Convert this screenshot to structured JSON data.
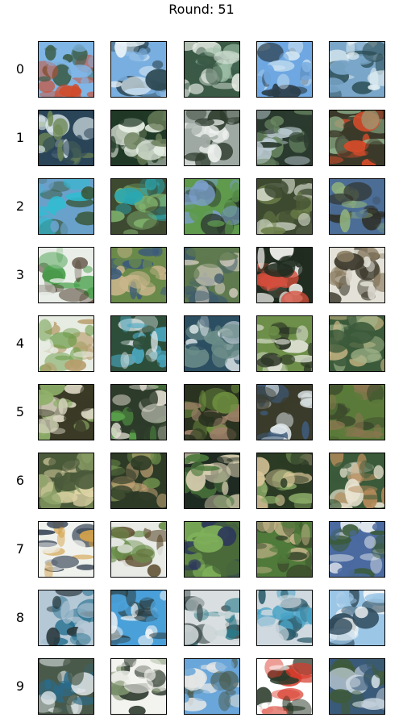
{
  "title": "Round: 51",
  "rows": [
    {
      "label": "0",
      "palettes": [
        [
          "#7fb6e6",
          "#3d5f4d",
          "#d14a2a"
        ],
        [
          "#79aee0",
          "#2f4a55",
          "#e7f1f6"
        ],
        [
          "#3a5a46",
          "#9fbfa8",
          "#e9eee6"
        ],
        [
          "#6ea7e1",
          "#2c3e4a",
          "#cfe4f2"
        ],
        [
          "#7aa6c9",
          "#2b4e56",
          "#e0eef2"
        ]
      ]
    },
    {
      "label": "1",
      "palettes": [
        [
          "#2a4458",
          "#d9e6ea",
          "#708a56"
        ],
        [
          "#203826",
          "#e7efe4",
          "#6b7f5a"
        ],
        [
          "#9fa9a3",
          "#2e3c2e",
          "#eef2ef"
        ],
        [
          "#2a3a2e",
          "#b9c9cf",
          "#6c8a64"
        ],
        [
          "#3b3a2a",
          "#d44b2b",
          "#8fb08a"
        ]
      ]
    },
    {
      "label": "2",
      "palettes": [
        [
          "#6aa1cb",
          "#3b5a3f",
          "#2fbcd2"
        ],
        [
          "#3d4a30",
          "#7fb06d",
          "#2aa7b2"
        ],
        [
          "#5f9a4d",
          "#2d3a2f",
          "#7a9fc9"
        ],
        [
          "#3d4a30",
          "#d9dfd1",
          "#6c7f49"
        ],
        [
          "#4b6d96",
          "#2f3029",
          "#8fb07d"
        ]
      ]
    },
    {
      "label": "3",
      "palettes": [
        [
          "#e9eee8",
          "#4a3a2a",
          "#4aa04d"
        ],
        [
          "#6a8a4a",
          "#3c5b7a",
          "#c9b58c"
        ],
        [
          "#5f7a4f",
          "#cfc9bb",
          "#3e5b6c"
        ],
        [
          "#1f2c1f",
          "#f0f0ec",
          "#d54d3b"
        ],
        [
          "#e4e2d8",
          "#3e3a2e",
          "#8a7c62"
        ]
      ]
    },
    {
      "label": "4",
      "palettes": [
        [
          "#e7ece2",
          "#6a9a45",
          "#b89d6c"
        ],
        [
          "#2d4f3a",
          "#d7e2e3",
          "#4aa8c2"
        ],
        [
          "#2c4f62",
          "#d6e0e3",
          "#6e8f8a"
        ],
        [
          "#6d8f49",
          "#2d3727",
          "#dfe2d6"
        ],
        [
          "#3b5a3a",
          "#a2b58a",
          "#d7c08c"
        ]
      ]
    },
    {
      "label": "5",
      "palettes": [
        [
          "#3a3a26",
          "#8fb06a",
          "#d8d4c0"
        ],
        [
          "#2d3b2a",
          "#e3e0d4",
          "#5aa04a"
        ],
        [
          "#2a3320",
          "#6f9040",
          "#a0826a"
        ],
        [
          "#3a3b2a",
          "#dfe7ea",
          "#3e5a7a"
        ],
        [
          "#5a7a3a",
          "#8a7650",
          "#3c4a2c"
        ]
      ]
    },
    {
      "label": "6",
      "palettes": [
        [
          "#4a5a3a",
          "#e3d7a9",
          "#8fa36a"
        ],
        [
          "#2d3a26",
          "#c9a87a",
          "#6b8a4a"
        ],
        [
          "#1f2b22",
          "#d8cfb1",
          "#4c7a3d"
        ],
        [
          "#2b3b24",
          "#8fb06a",
          "#d9c69a"
        ],
        [
          "#3a5a3a",
          "#e8e2cf",
          "#b58a5a"
        ]
      ]
    },
    {
      "label": "7",
      "palettes": [
        [
          "#f0f2ee",
          "#3d4a5a",
          "#d4a24a"
        ],
        [
          "#e8eae6",
          "#5a4a2a",
          "#6a8f4a"
        ],
        [
          "#4a6a3a",
          "#7fb05a",
          "#2e3a5a"
        ],
        [
          "#4f7a3a",
          "#c7b58a",
          "#3c4a2c"
        ],
        [
          "#4a6aa0",
          "#e8ecef",
          "#3a5a3a"
        ]
      ]
    },
    {
      "label": "8",
      "palettes": [
        [
          "#b5c8d6",
          "#2b3a3f",
          "#1e6c8c"
        ],
        [
          "#4aa0d9",
          "#f0f4f6",
          "#2b3a3a"
        ],
        [
          "#d9dfe0",
          "#3a4a4a",
          "#2a7a8a"
        ],
        [
          "#cfd9df",
          "#2b5a6a",
          "#47a2c6"
        ],
        [
          "#9cc6e6",
          "#f3f5f6",
          "#2f4a5a"
        ]
      ]
    },
    {
      "label": "9",
      "palettes": [
        [
          "#4a5a4a",
          "#e5ebee",
          "#2b6b8a"
        ],
        [
          "#f3f3ef",
          "#2e3a2e",
          "#7a8f6a"
        ],
        [
          "#6aa6d9",
          "#e6e8e6",
          "#4a5a4a"
        ],
        [
          "#ffffff",
          "#2a3a2a",
          "#d83a2a"
        ],
        [
          "#3a5a7a",
          "#c9d6df",
          "#3e5a3a"
        ]
      ]
    }
  ]
}
